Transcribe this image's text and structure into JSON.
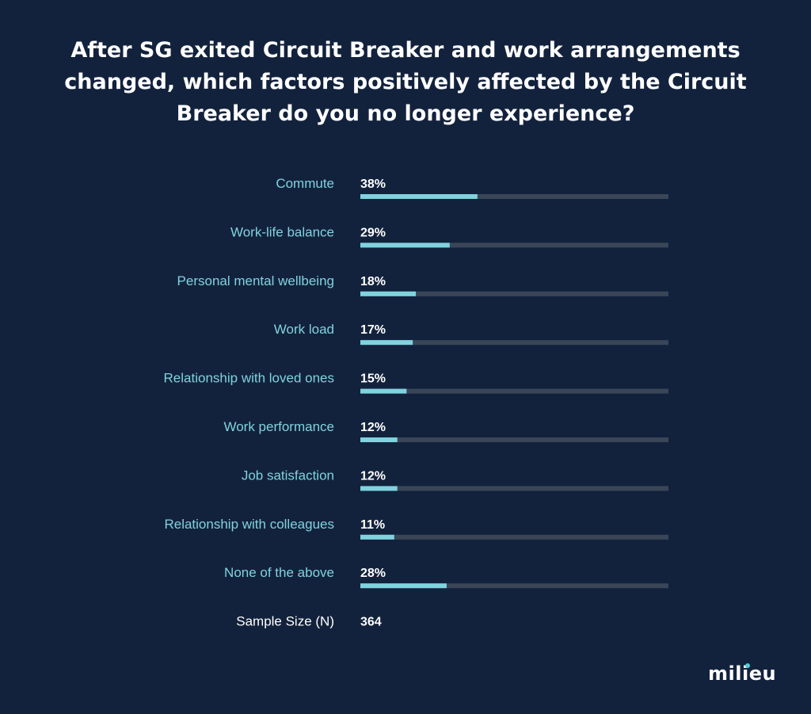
{
  "chart_data": {
    "type": "bar",
    "title": "After SG exited Circuit Breaker and work arrangements changed, which factors positively affected by the Circuit Breaker do you no longer experience?",
    "categories": [
      "Commute",
      "Work-life balance",
      "Personal mental wellbeing",
      "Work load",
      "Relationship with loved ones",
      "Work performance",
      "Job satisfaction",
      "Relationship with colleagues",
      "None of the above"
    ],
    "values": [
      38,
      29,
      18,
      17,
      15,
      12,
      12,
      11,
      28
    ],
    "value_labels": [
      "38%",
      "29%",
      "18%",
      "17%",
      "15%",
      "12%",
      "12%",
      "11%",
      "28%"
    ],
    "unit": "%",
    "xlim": [
      0,
      100
    ],
    "grid": false,
    "orientation": "horizontal",
    "sample_size_label": "Sample Size (N)",
    "sample_size": "364"
  },
  "brand": {
    "logo_text": "milieu"
  },
  "colors": {
    "background": "#13223c",
    "bar_fill": "#7fd3df",
    "bar_track": "#3a4658",
    "label": "#7fd3df",
    "value": "#ffffff"
  }
}
